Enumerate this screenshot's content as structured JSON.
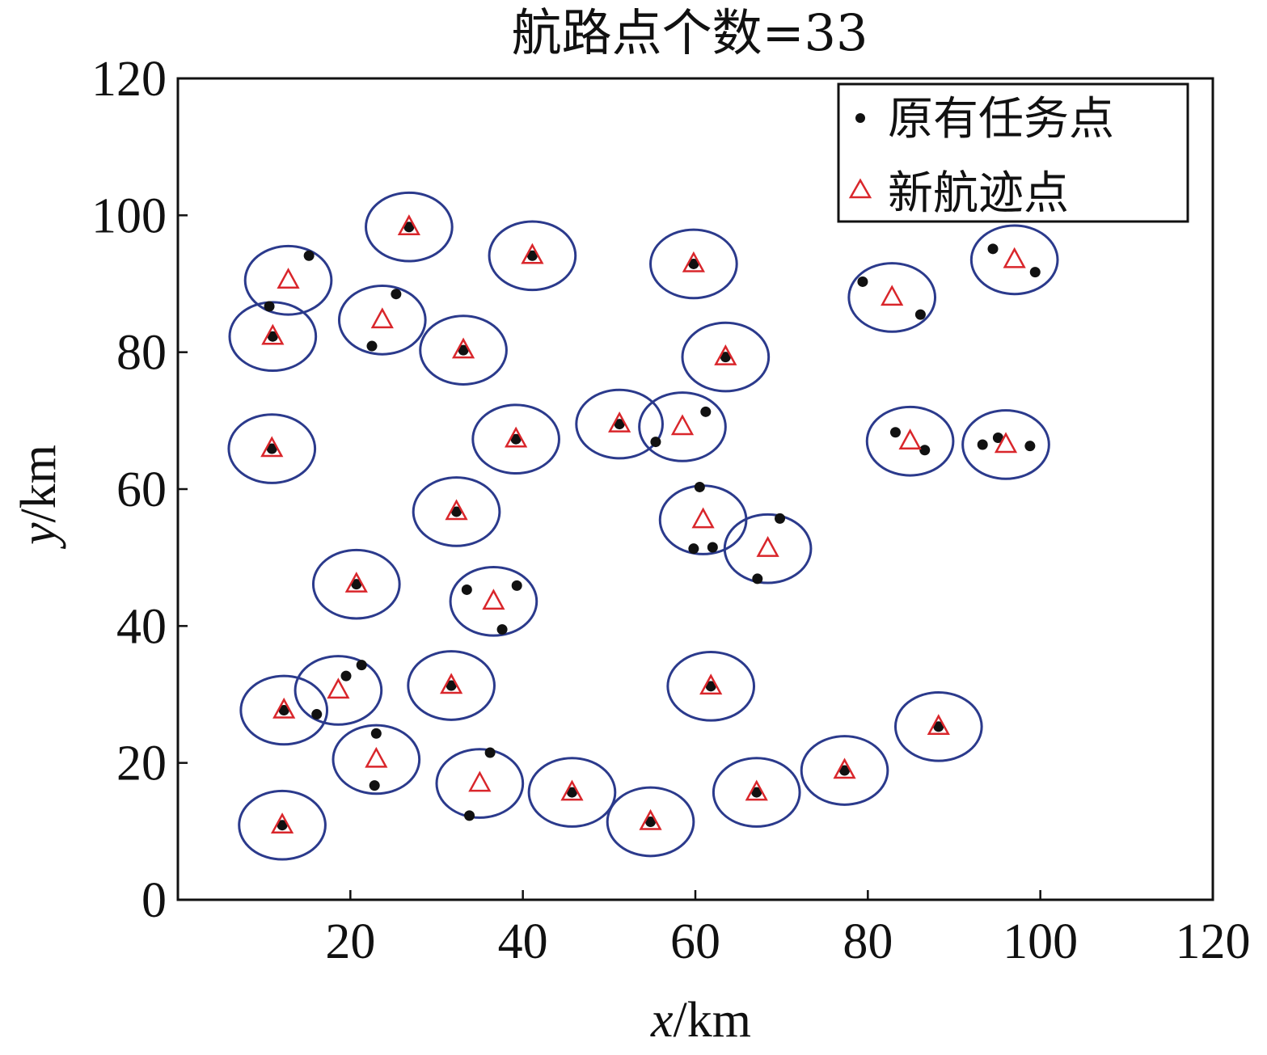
{
  "chart_data": {
    "type": "scatter",
    "title": "航路点个数=33",
    "xlabel_var": "x",
    "xlabel_unit": "/km",
    "ylabel_var": "y",
    "ylabel_unit": "/km",
    "xlim": [
      0,
      120
    ],
    "ylim": [
      0,
      120
    ],
    "xticks": [
      20,
      40,
      60,
      80,
      100,
      120
    ],
    "yticks": [
      0,
      20,
      40,
      60,
      80,
      100,
      120
    ],
    "grid": false,
    "legend_placement": "top-right",
    "circle_radius_x": 5,
    "circle_radius_y": 5,
    "colors": {
      "task_point": "#111111",
      "waypoint": "#d9262b",
      "circle": "#2b3a8c",
      "axes": "#111111"
    },
    "series": [
      {
        "name": "原有任务点",
        "marker": "dot",
        "points": [
          [
            10.6,
            86.7
          ],
          [
            15.2,
            94.1
          ],
          [
            11.0,
            82.3
          ],
          [
            26.8,
            98.3
          ],
          [
            25.3,
            88.5
          ],
          [
            22.5,
            80.9
          ],
          [
            33.1,
            80.3
          ],
          [
            41.1,
            94.1
          ],
          [
            59.8,
            92.9
          ],
          [
            79.4,
            90.3
          ],
          [
            86.1,
            85.5
          ],
          [
            94.5,
            95.1
          ],
          [
            99.4,
            91.7
          ],
          [
            63.5,
            79.3
          ],
          [
            10.9,
            65.9
          ],
          [
            39.2,
            67.3
          ],
          [
            51.2,
            69.5
          ],
          [
            55.4,
            66.9
          ],
          [
            61.2,
            71.3
          ],
          [
            83.2,
            68.3
          ],
          [
            86.6,
            65.7
          ],
          [
            93.3,
            66.5
          ],
          [
            95.1,
            67.5
          ],
          [
            98.8,
            66.3
          ],
          [
            32.3,
            56.7
          ],
          [
            60.5,
            60.3
          ],
          [
            59.8,
            51.3
          ],
          [
            62.0,
            51.5
          ],
          [
            69.8,
            55.7
          ],
          [
            67.2,
            46.9
          ],
          [
            20.7,
            46.1
          ],
          [
            33.5,
            45.3
          ],
          [
            39.3,
            45.9
          ],
          [
            37.6,
            39.5
          ],
          [
            19.5,
            32.7
          ],
          [
            21.3,
            34.3
          ],
          [
            12.3,
            27.7
          ],
          [
            16.1,
            27.1
          ],
          [
            31.7,
            31.3
          ],
          [
            61.8,
            31.2
          ],
          [
            23.0,
            24.3
          ],
          [
            22.8,
            16.7
          ],
          [
            36.2,
            21.5
          ],
          [
            33.8,
            12.3
          ],
          [
            45.7,
            15.7
          ],
          [
            54.8,
            11.4
          ],
          [
            67.1,
            15.7
          ],
          [
            77.3,
            18.9
          ],
          [
            88.2,
            25.3
          ],
          [
            12.1,
            10.9
          ]
        ]
      },
      {
        "name": "新航迹点",
        "marker": "triangle",
        "points": [
          [
            12.8,
            90.5
          ],
          [
            11.0,
            82.3
          ],
          [
            26.8,
            98.3
          ],
          [
            23.7,
            84.7
          ],
          [
            33.1,
            80.3
          ],
          [
            41.1,
            94.1
          ],
          [
            59.8,
            92.9
          ],
          [
            82.8,
            88.0
          ],
          [
            97.0,
            93.5
          ],
          [
            63.5,
            79.3
          ],
          [
            10.9,
            65.9
          ],
          [
            39.2,
            67.3
          ],
          [
            51.2,
            69.5
          ],
          [
            58.5,
            69.1
          ],
          [
            84.9,
            67.0
          ],
          [
            96.0,
            66.5
          ],
          [
            32.3,
            56.7
          ],
          [
            60.9,
            55.5
          ],
          [
            68.4,
            51.3
          ],
          [
            20.7,
            46.1
          ],
          [
            36.6,
            43.6
          ],
          [
            18.6,
            30.6
          ],
          [
            12.3,
            27.7
          ],
          [
            31.7,
            31.3
          ],
          [
            61.8,
            31.2
          ],
          [
            23.0,
            20.5
          ],
          [
            35.0,
            17.0
          ],
          [
            45.7,
            15.7
          ],
          [
            54.8,
            11.4
          ],
          [
            67.1,
            15.7
          ],
          [
            77.3,
            18.9
          ],
          [
            88.2,
            25.3
          ],
          [
            12.1,
            10.9
          ]
        ]
      }
    ]
  }
}
